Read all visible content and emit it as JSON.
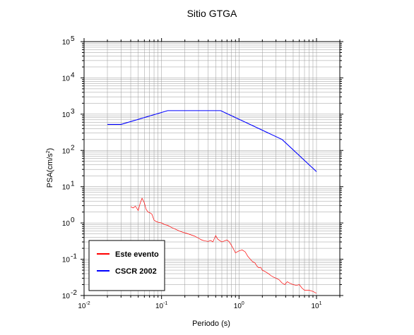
{
  "chart_data": {
    "type": "line",
    "title": "Sitio GTGA",
    "xlabel": "Periodo (s)",
    "ylabel": "PSA(cm/s²)",
    "ylabel_main": "PSA(cm/s",
    "ylabel_sup": "2",
    "ylabel_close": ")",
    "x_scale": "log",
    "y_scale": "log",
    "xlim": [
      0.01,
      20
    ],
    "ylim": [
      0.01,
      100000
    ],
    "grid": true,
    "legend_position": "bottom-left",
    "x_ticks": [
      {
        "base": "10",
        "exp": "-2"
      },
      {
        "base": "10",
        "exp": "-1"
      },
      {
        "base": "10",
        "exp": "0"
      },
      {
        "base": "10",
        "exp": "1"
      }
    ],
    "y_ticks": [
      {
        "base": "10",
        "exp": "-2"
      },
      {
        "base": "10",
        "exp": "-1"
      },
      {
        "base": "10",
        "exp": "0"
      },
      {
        "base": "10",
        "exp": "1"
      },
      {
        "base": "10",
        "exp": "2"
      },
      {
        "base": "10",
        "exp": "3"
      },
      {
        "base": "10",
        "exp": "4"
      },
      {
        "base": "10",
        "exp": "5"
      }
    ],
    "series": [
      {
        "name": "Este evento",
        "color": "#ff0000",
        "points": [
          [
            0.04,
            2.8
          ],
          [
            0.043,
            2.6
          ],
          [
            0.046,
            2.9
          ],
          [
            0.05,
            2.2
          ],
          [
            0.053,
            3.5
          ],
          [
            0.056,
            4.8
          ],
          [
            0.06,
            3.6
          ],
          [
            0.063,
            2.4
          ],
          [
            0.067,
            2.0
          ],
          [
            0.071,
            1.9
          ],
          [
            0.075,
            1.75
          ],
          [
            0.08,
            1.2
          ],
          [
            0.085,
            1.1
          ],
          [
            0.09,
            1.05
          ],
          [
            0.1,
            1.0
          ],
          [
            0.11,
            0.9
          ],
          [
            0.12,
            0.86
          ],
          [
            0.13,
            0.78
          ],
          [
            0.14,
            0.72
          ],
          [
            0.15,
            0.68
          ],
          [
            0.17,
            0.6
          ],
          [
            0.19,
            0.55
          ],
          [
            0.21,
            0.52
          ],
          [
            0.24,
            0.47
          ],
          [
            0.27,
            0.43
          ],
          [
            0.3,
            0.38
          ],
          [
            0.33,
            0.34
          ],
          [
            0.36,
            0.32
          ],
          [
            0.4,
            0.31
          ],
          [
            0.43,
            0.33
          ],
          [
            0.46,
            0.3
          ],
          [
            0.5,
            0.45
          ],
          [
            0.53,
            0.36
          ],
          [
            0.56,
            0.33
          ],
          [
            0.6,
            0.3
          ],
          [
            0.65,
            0.32
          ],
          [
            0.7,
            0.34
          ],
          [
            0.75,
            0.3
          ],
          [
            0.8,
            0.24
          ],
          [
            0.85,
            0.19
          ],
          [
            0.9,
            0.15
          ],
          [
            0.95,
            0.16
          ],
          [
            1.0,
            0.17
          ],
          [
            1.1,
            0.18
          ],
          [
            1.2,
            0.16
          ],
          [
            1.3,
            0.12
          ],
          [
            1.4,
            0.1
          ],
          [
            1.5,
            0.085
          ],
          [
            1.6,
            0.08
          ],
          [
            1.7,
            0.065
          ],
          [
            1.8,
            0.058
          ],
          [
            1.9,
            0.06
          ],
          [
            2.0,
            0.05
          ],
          [
            2.2,
            0.045
          ],
          [
            2.4,
            0.04
          ],
          [
            2.6,
            0.035
          ],
          [
            2.8,
            0.032
          ],
          [
            3.0,
            0.03
          ],
          [
            3.3,
            0.027
          ],
          [
            3.6,
            0.022
          ],
          [
            3.9,
            0.02
          ],
          [
            4.2,
            0.024
          ],
          [
            4.5,
            0.022
          ],
          [
            5.0,
            0.02
          ],
          [
            5.5,
            0.019
          ],
          [
            6.0,
            0.02
          ],
          [
            6.5,
            0.016
          ],
          [
            7.0,
            0.014
          ],
          [
            8.0,
            0.014
          ],
          [
            9.0,
            0.013
          ],
          [
            10.0,
            0.0115
          ]
        ]
      },
      {
        "name": "CSCR 2002",
        "color": "#0000ff",
        "points": [
          [
            0.02,
            520
          ],
          [
            0.03,
            520
          ],
          [
            0.12,
            1250
          ],
          [
            0.58,
            1250
          ],
          [
            3.6,
            200
          ],
          [
            10.0,
            26
          ]
        ]
      }
    ]
  }
}
